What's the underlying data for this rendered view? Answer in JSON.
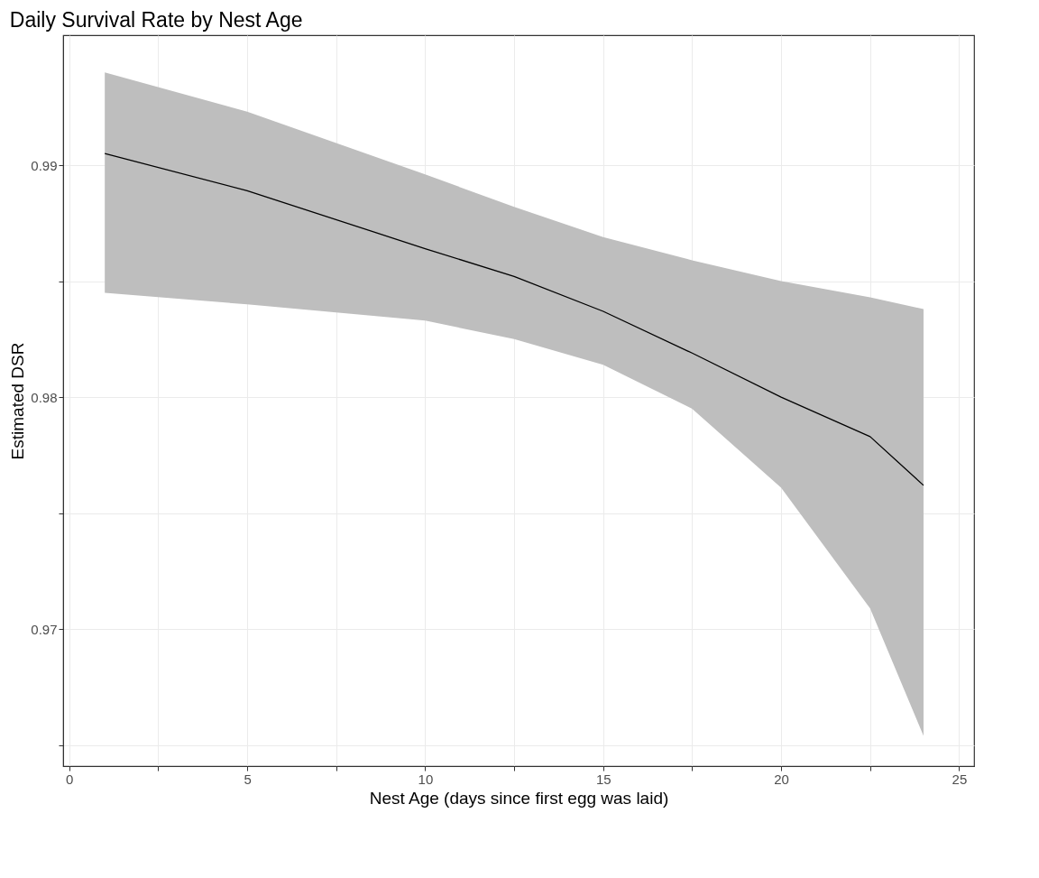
{
  "chart_data": {
    "type": "line",
    "title": "Daily Survival Rate by Nest Age",
    "xlabel": "Nest Age (days since first egg was laid)",
    "ylabel": "Estimated DSR",
    "x": [
      1,
      5,
      10,
      12.5,
      15,
      17.5,
      20,
      22.5,
      24
    ],
    "series": [
      {
        "color": "#000000",
        "values": [
          0.9905,
          0.9889,
          0.9864,
          0.9852,
          0.9837,
          0.9819,
          0.98,
          0.9783,
          0.9762
        ],
        "lower": [
          0.9845,
          0.984,
          0.9833,
          0.9825,
          0.9814,
          0.9795,
          0.9761,
          0.9709,
          0.9654
        ],
        "upper": [
          0.994,
          0.9923,
          0.9896,
          0.9882,
          0.9869,
          0.9859,
          0.985,
          0.9843,
          0.9838
        ]
      }
    ],
    "xlim": [
      -0.17,
      25.42
    ],
    "xticks": [
      0,
      {
        "value": 2.5,
        "label": null
      },
      5,
      {
        "value": 7.5,
        "label": null
      },
      10,
      {
        "value": 12.5,
        "label": null
      },
      15,
      {
        "value": 17.5,
        "label": null
      },
      20,
      {
        "value": 22.5,
        "label": null
      },
      25
    ],
    "ylim": [
      0.9641,
      0.9956
    ],
    "yticks": [
      {
        "value": 0.965,
        "label": null
      },
      0.97,
      {
        "value": 0.975,
        "label": null
      },
      0.98,
      {
        "value": 0.985,
        "label": null
      },
      0.99
    ],
    "grid": true,
    "marker": "none",
    "line_style": "solid"
  }
}
